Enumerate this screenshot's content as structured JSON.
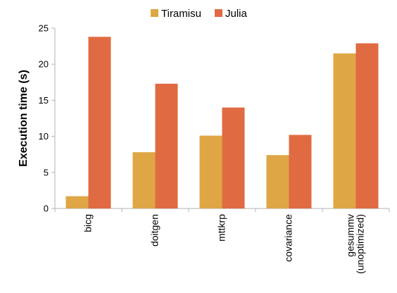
{
  "chart_data": {
    "type": "bar",
    "title": "",
    "xlabel": "",
    "ylabel": "Execution time (s)",
    "ylim": [
      0,
      25
    ],
    "yticks": [
      0,
      5,
      10,
      15,
      20,
      25
    ],
    "grid": false,
    "legend": "top-center",
    "categories": [
      [
        "bicg"
      ],
      [
        "doitgen"
      ],
      [
        "mttkrp"
      ],
      [
        "covariance"
      ],
      [
        "gesummv",
        "(unoptimized)"
      ]
    ],
    "series": [
      {
        "name": "Tiramisu",
        "color": "#DEA644",
        "values": [
          1.7,
          7.8,
          10.1,
          7.4,
          21.5
        ]
      },
      {
        "name": "Julia",
        "color": "#E06B42",
        "values": [
          23.8,
          17.3,
          14.0,
          10.2,
          22.9
        ]
      }
    ]
  }
}
